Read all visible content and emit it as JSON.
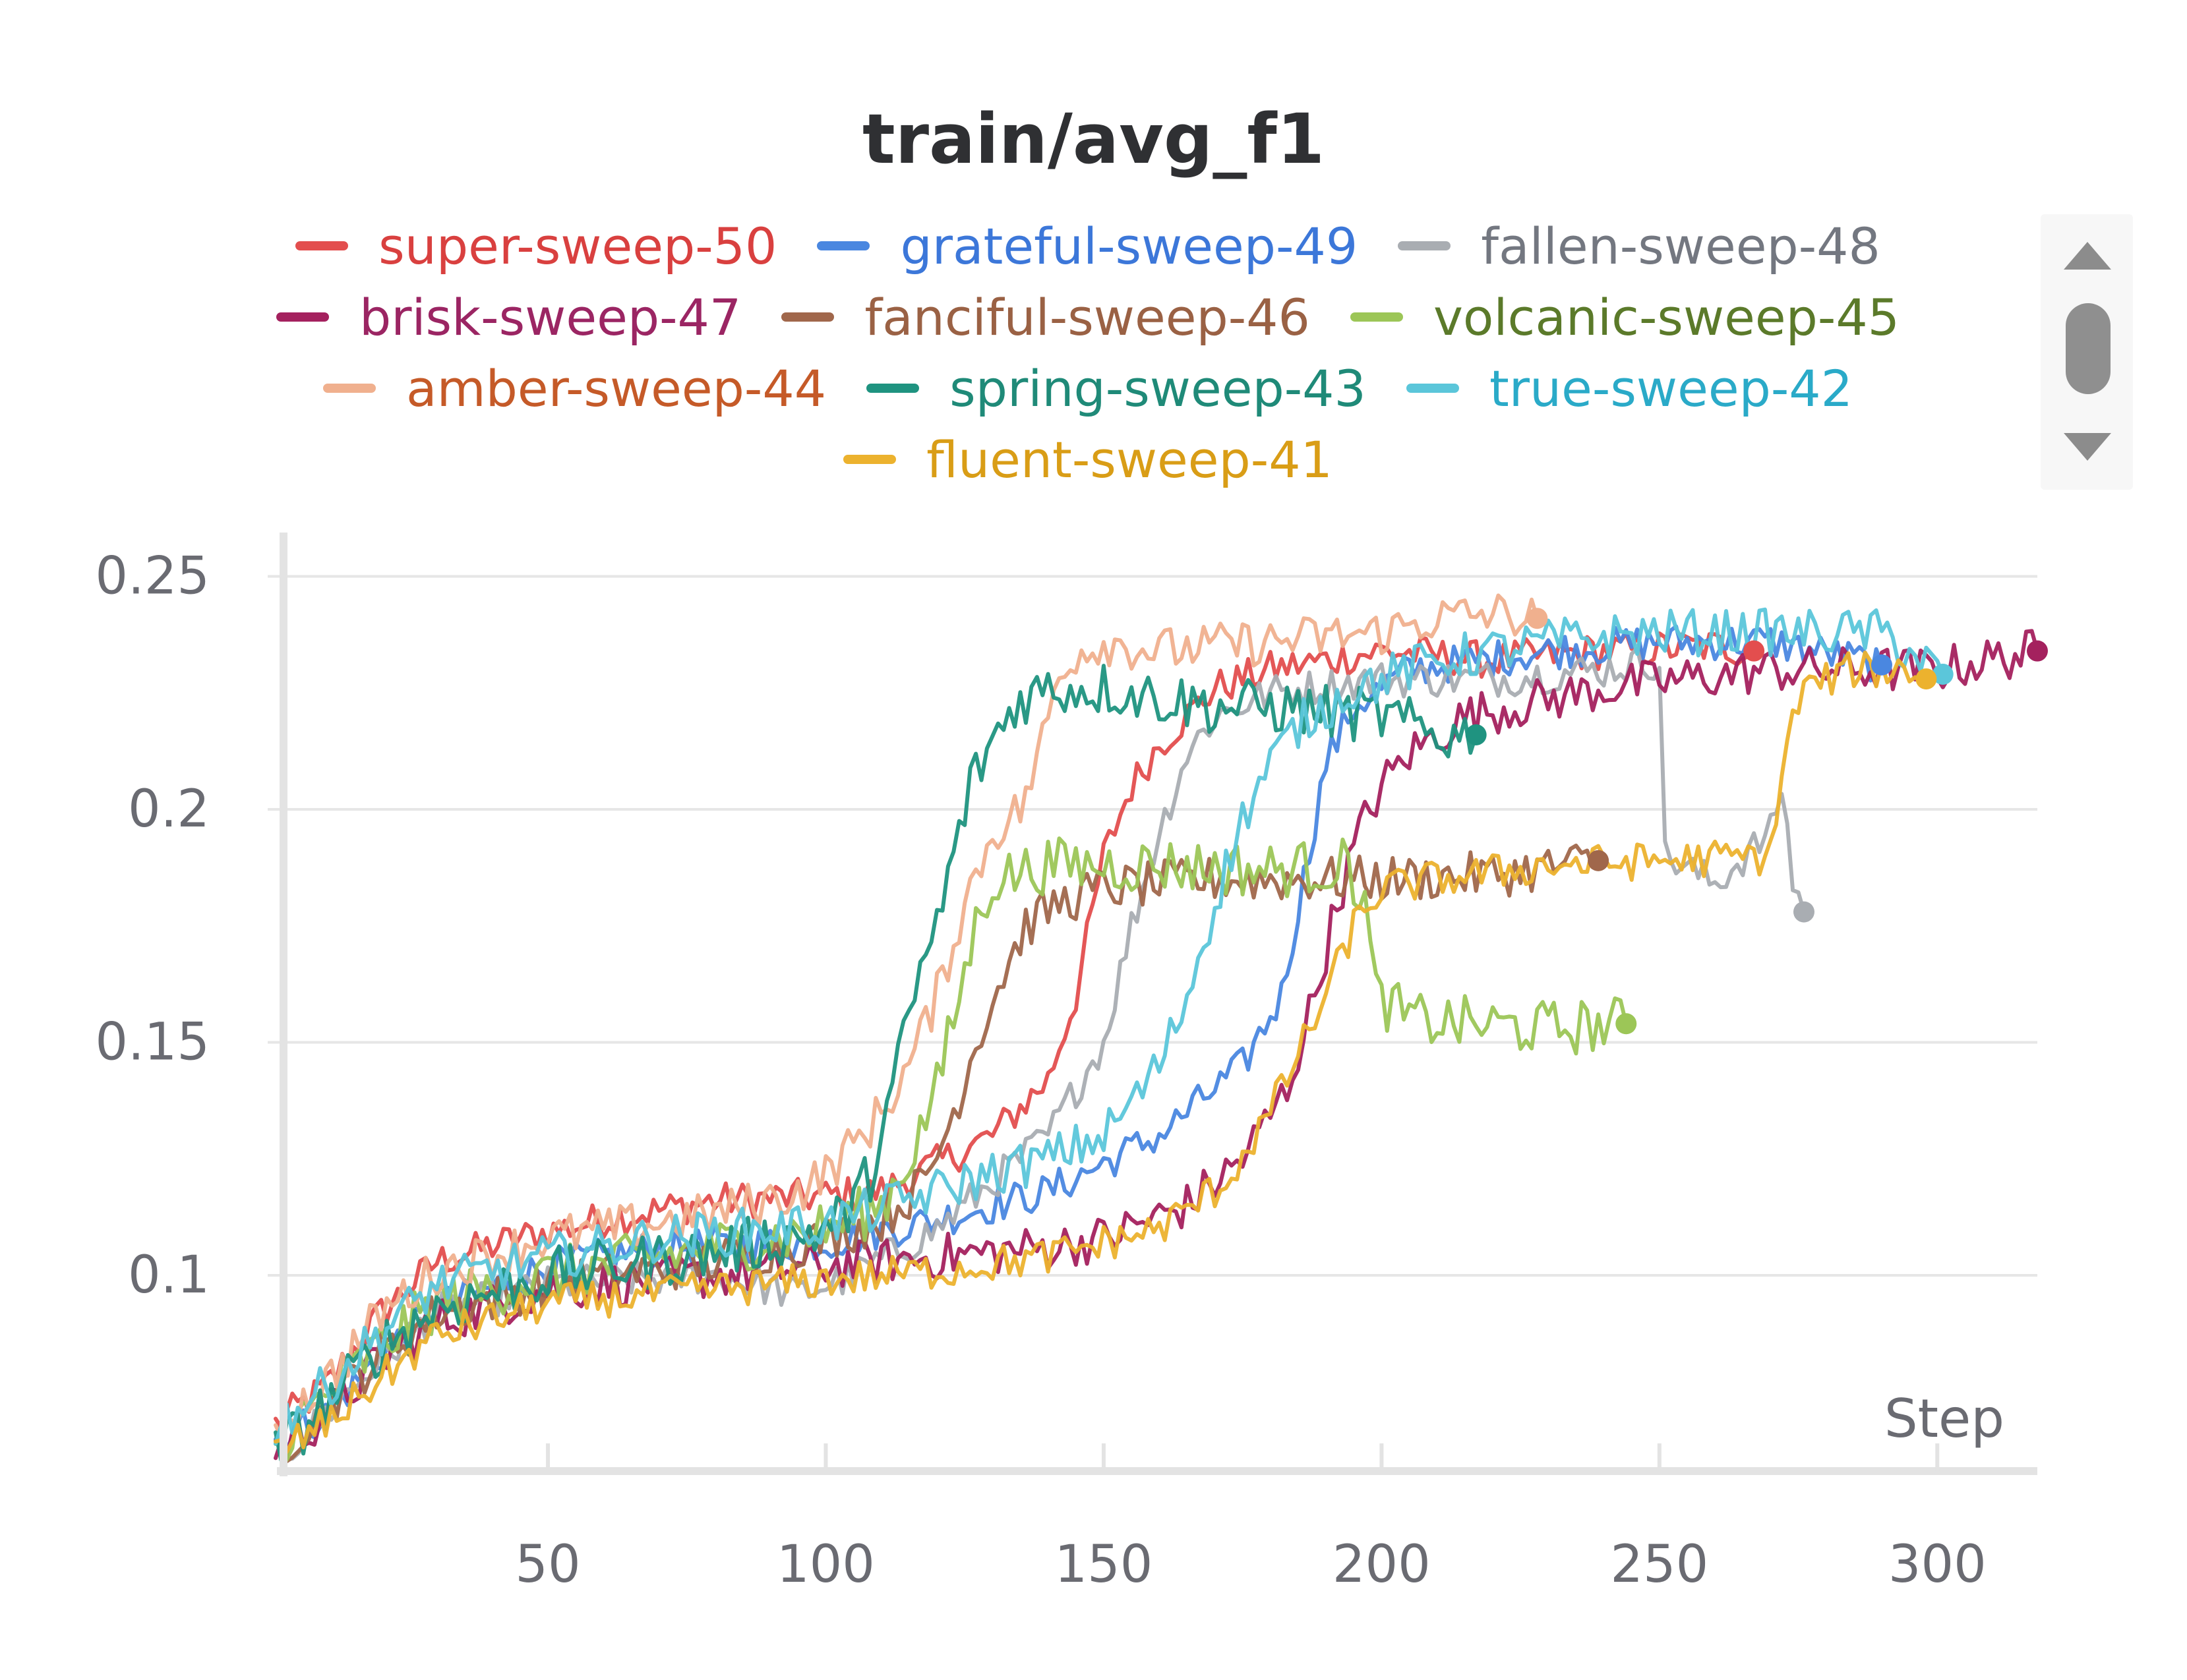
{
  "chart_data": {
    "type": "line",
    "title": "train/avg_f1",
    "xlabel": "Step",
    "ylabel": "",
    "xlim": [
      1,
      318
    ],
    "ylim": [
      0.058,
      0.258
    ],
    "x_ticks": [
      50,
      100,
      150,
      200,
      250,
      300
    ],
    "y_ticks": [
      0.1,
      0.15,
      0.2,
      0.25
    ],
    "x_tick_labels": [
      "50",
      "100",
      "150",
      "200",
      "250",
      "300"
    ],
    "y_tick_labels": [
      "0.1",
      "0.15",
      "0.2",
      "0.25"
    ],
    "grid": true,
    "legend_position": "top",
    "series": [
      {
        "name": "super-sweep-50",
        "color": "#e34e4e",
        "text_color": "#d9403f",
        "noise": 0.004,
        "points": [
          [
            1,
            0.068
          ],
          [
            10,
            0.076
          ],
          [
            20,
            0.092
          ],
          [
            30,
            0.103
          ],
          [
            45,
            0.108
          ],
          [
            60,
            0.112
          ],
          [
            80,
            0.116
          ],
          [
            100,
            0.117
          ],
          [
            110,
            0.118
          ],
          [
            120,
            0.124
          ],
          [
            130,
            0.13
          ],
          [
            140,
            0.142
          ],
          [
            145,
            0.16
          ],
          [
            150,
            0.19
          ],
          [
            155,
            0.205
          ],
          [
            160,
            0.214
          ],
          [
            170,
            0.226
          ],
          [
            180,
            0.23
          ],
          [
            200,
            0.234
          ],
          [
            220,
            0.232
          ],
          [
            240,
            0.234
          ],
          [
            260,
            0.235
          ],
          [
            267,
            0.234
          ]
        ]
      },
      {
        "name": "grateful-sweep-49",
        "color": "#4a87e0",
        "text_color": "#3c77d9",
        "noise": 0.004,
        "points": [
          [
            1,
            0.065
          ],
          [
            10,
            0.07
          ],
          [
            20,
            0.083
          ],
          [
            30,
            0.093
          ],
          [
            50,
            0.102
          ],
          [
            70,
            0.106
          ],
          [
            100,
            0.107
          ],
          [
            120,
            0.112
          ],
          [
            140,
            0.118
          ],
          [
            160,
            0.13
          ],
          [
            175,
            0.145
          ],
          [
            182,
            0.16
          ],
          [
            186,
            0.185
          ],
          [
            190,
            0.21
          ],
          [
            195,
            0.222
          ],
          [
            205,
            0.23
          ],
          [
            230,
            0.234
          ],
          [
            250,
            0.236
          ],
          [
            270,
            0.236
          ],
          [
            290,
            0.231
          ]
        ]
      },
      {
        "name": "fallen-sweep-48",
        "color": "#a9adb2",
        "text_color": "#737780",
        "noise": 0.004,
        "points": [
          [
            1,
            0.06
          ],
          [
            10,
            0.07
          ],
          [
            20,
            0.082
          ],
          [
            30,
            0.092
          ],
          [
            50,
            0.098
          ],
          [
            80,
            0.1
          ],
          [
            95,
            0.096
          ],
          [
            105,
            0.1
          ],
          [
            120,
            0.11
          ],
          [
            140,
            0.13
          ],
          [
            150,
            0.15
          ],
          [
            155,
            0.175
          ],
          [
            160,
            0.195
          ],
          [
            165,
            0.212
          ],
          [
            170,
            0.22
          ],
          [
            180,
            0.225
          ],
          [
            200,
            0.228
          ],
          [
            220,
            0.228
          ],
          [
            240,
            0.23
          ],
          [
            250,
            0.232
          ],
          [
            251,
            0.19
          ],
          [
            260,
            0.184
          ],
          [
            270,
            0.195
          ],
          [
            272,
            0.205
          ],
          [
            274,
            0.185
          ],
          [
            276,
            0.178
          ]
        ]
      },
      {
        "name": "brisk-sweep-47",
        "color": "#a4215e",
        "text_color": "#9b2563",
        "noise": 0.005,
        "points": [
          [
            1,
            0.062
          ],
          [
            10,
            0.07
          ],
          [
            20,
            0.082
          ],
          [
            30,
            0.09
          ],
          [
            50,
            0.097
          ],
          [
            80,
            0.1
          ],
          [
            100,
            0.102
          ],
          [
            120,
            0.104
          ],
          [
            140,
            0.106
          ],
          [
            150,
            0.108
          ],
          [
            165,
            0.115
          ],
          [
            175,
            0.125
          ],
          [
            183,
            0.14
          ],
          [
            188,
            0.16
          ],
          [
            192,
            0.18
          ],
          [
            196,
            0.195
          ],
          [
            200,
            0.205
          ],
          [
            205,
            0.212
          ],
          [
            215,
            0.22
          ],
          [
            240,
            0.226
          ],
          [
            270,
            0.23
          ],
          [
            300,
            0.23
          ],
          [
            318,
            0.234
          ]
        ]
      },
      {
        "name": "fanciful-sweep-46",
        "color": "#a0674b",
        "text_color": "#9a6144",
        "noise": 0.005,
        "points": [
          [
            1,
            0.062
          ],
          [
            10,
            0.072
          ],
          [
            20,
            0.083
          ],
          [
            30,
            0.092
          ],
          [
            50,
            0.098
          ],
          [
            80,
            0.103
          ],
          [
            100,
            0.108
          ],
          [
            110,
            0.112
          ],
          [
            118,
            0.12
          ],
          [
            123,
            0.135
          ],
          [
            127,
            0.15
          ],
          [
            132,
            0.165
          ],
          [
            136,
            0.175
          ],
          [
            142,
            0.18
          ],
          [
            150,
            0.183
          ],
          [
            160,
            0.184
          ],
          [
            170,
            0.185
          ],
          [
            180,
            0.185
          ],
          [
            200,
            0.185
          ],
          [
            220,
            0.186
          ],
          [
            239,
            0.189
          ]
        ]
      },
      {
        "name": "volcanic-sweep-45",
        "color": "#9cc657",
        "text_color": "#5b7a2a",
        "noise": 0.006,
        "points": [
          [
            1,
            0.064
          ],
          [
            10,
            0.074
          ],
          [
            20,
            0.085
          ],
          [
            30,
            0.094
          ],
          [
            50,
            0.1
          ],
          [
            80,
            0.106
          ],
          [
            100,
            0.11
          ],
          [
            110,
            0.115
          ],
          [
            115,
            0.125
          ],
          [
            120,
            0.14
          ],
          [
            124,
            0.16
          ],
          [
            127,
            0.175
          ],
          [
            130,
            0.185
          ],
          [
            140,
            0.188
          ],
          [
            160,
            0.188
          ],
          [
            180,
            0.187
          ],
          [
            194,
            0.188
          ],
          [
            197,
            0.18
          ],
          [
            199,
            0.16
          ],
          [
            205,
            0.155
          ],
          [
            215,
            0.154
          ],
          [
            230,
            0.153
          ],
          [
            244,
            0.154
          ]
        ]
      },
      {
        "name": "amber-sweep-44",
        "color": "#f0b08e",
        "text_color": "#c55a28",
        "noise": 0.005,
        "points": [
          [
            1,
            0.068
          ],
          [
            10,
            0.077
          ],
          [
            20,
            0.092
          ],
          [
            30,
            0.101
          ],
          [
            50,
            0.108
          ],
          [
            80,
            0.113
          ],
          [
            95,
            0.118
          ],
          [
            100,
            0.122
          ],
          [
            105,
            0.128
          ],
          [
            110,
            0.135
          ],
          [
            115,
            0.145
          ],
          [
            120,
            0.16
          ],
          [
            125,
            0.18
          ],
          [
            130,
            0.195
          ],
          [
            135,
            0.2
          ],
          [
            138,
            0.21
          ],
          [
            141,
            0.225
          ],
          [
            144,
            0.233
          ],
          [
            150,
            0.236
          ],
          [
            160,
            0.234
          ],
          [
            180,
            0.236
          ],
          [
            200,
            0.238
          ],
          [
            210,
            0.241
          ],
          [
            220,
            0.242
          ],
          [
            228,
            0.241
          ]
        ]
      },
      {
        "name": "spring-sweep-43",
        "color": "#1f9380",
        "text_color": "#1f8a78",
        "noise": 0.006,
        "points": [
          [
            1,
            0.062
          ],
          [
            10,
            0.072
          ],
          [
            20,
            0.085
          ],
          [
            30,
            0.093
          ],
          [
            50,
            0.1
          ],
          [
            80,
            0.105
          ],
          [
            100,
            0.11
          ],
          [
            105,
            0.115
          ],
          [
            108,
            0.122
          ],
          [
            111,
            0.135
          ],
          [
            114,
            0.15
          ],
          [
            117,
            0.165
          ],
          [
            120,
            0.175
          ],
          [
            123,
            0.19
          ],
          [
            126,
            0.205
          ],
          [
            130,
            0.215
          ],
          [
            135,
            0.224
          ],
          [
            140,
            0.226
          ],
          [
            150,
            0.226
          ],
          [
            160,
            0.224
          ],
          [
            170,
            0.222
          ],
          [
            180,
            0.222
          ],
          [
            200,
            0.22
          ],
          [
            210,
            0.216
          ],
          [
            217,
            0.216
          ]
        ]
      },
      {
        "name": "true-sweep-42",
        "color": "#5bc6da",
        "text_color": "#2aaac8",
        "noise": 0.005,
        "points": [
          [
            1,
            0.068
          ],
          [
            10,
            0.076
          ],
          [
            20,
            0.088
          ],
          [
            30,
            0.098
          ],
          [
            50,
            0.104
          ],
          [
            70,
            0.108
          ],
          [
            100,
            0.111
          ],
          [
            120,
            0.118
          ],
          [
            130,
            0.122
          ],
          [
            140,
            0.125
          ],
          [
            150,
            0.13
          ],
          [
            155,
            0.137
          ],
          [
            160,
            0.145
          ],
          [
            165,
            0.16
          ],
          [
            170,
            0.18
          ],
          [
            175,
            0.198
          ],
          [
            180,
            0.21
          ],
          [
            185,
            0.218
          ],
          [
            195,
            0.226
          ],
          [
            210,
            0.232
          ],
          [
            230,
            0.236
          ],
          [
            250,
            0.238
          ],
          [
            270,
            0.238
          ],
          [
            290,
            0.238
          ],
          [
            301,
            0.229
          ]
        ]
      },
      {
        "name": "fluent-sweep-41",
        "color": "#ecb22e",
        "text_color": "#d99d16",
        "noise": 0.004,
        "points": [
          [
            1,
            0.062
          ],
          [
            10,
            0.068
          ],
          [
            20,
            0.078
          ],
          [
            30,
            0.087
          ],
          [
            50,
            0.094
          ],
          [
            80,
            0.097
          ],
          [
            100,
            0.099
          ],
          [
            120,
            0.101
          ],
          [
            140,
            0.104
          ],
          [
            160,
            0.11
          ],
          [
            172,
            0.12
          ],
          [
            180,
            0.135
          ],
          [
            186,
            0.15
          ],
          [
            190,
            0.16
          ],
          [
            195,
            0.175
          ],
          [
            200,
            0.183
          ],
          [
            210,
            0.185
          ],
          [
            230,
            0.188
          ],
          [
            250,
            0.189
          ],
          [
            270,
            0.19
          ],
          [
            271,
            0.2
          ],
          [
            273,
            0.215
          ],
          [
            276,
            0.226
          ],
          [
            285,
            0.23
          ],
          [
            295,
            0.23
          ],
          [
            298,
            0.228
          ]
        ]
      }
    ]
  }
}
